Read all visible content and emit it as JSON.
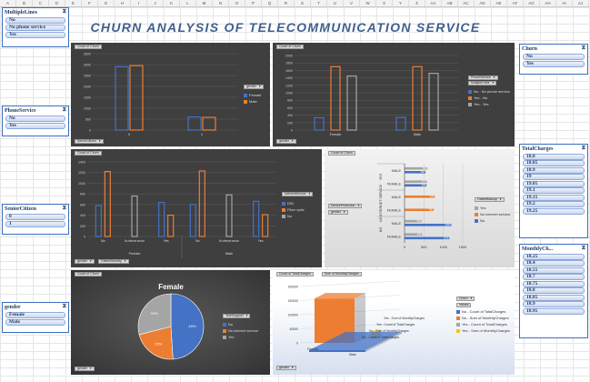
{
  "columns": [
    "A",
    "B",
    "C",
    "D",
    "E",
    "F",
    "G",
    "H",
    "I",
    "J",
    "K",
    "L",
    "M",
    "N",
    "O",
    "P",
    "Q",
    "R",
    "S",
    "T",
    "U",
    "V",
    "W",
    "X",
    "Y",
    "Z",
    "AA",
    "AB",
    "AC",
    "AD",
    "AE",
    "AF",
    "AG",
    "AH",
    "AI",
    "AJ"
  ],
  "title": "CHURN ANALYSIS OF TELECOMMUNICATION SERVICE",
  "slicers": {
    "multiple_lines": {
      "header": "MultipleLines",
      "items": [
        "No",
        "No phone service",
        "Yes"
      ]
    },
    "phone_service": {
      "header": "PhoneService",
      "items": [
        "No",
        "Yes"
      ]
    },
    "senior_citizen": {
      "header": "SeniorCitizen",
      "items": [
        "0",
        "1"
      ]
    },
    "gender": {
      "header": "gender",
      "items": [
        "Female",
        "Male"
      ]
    },
    "churn": {
      "header": "Churn",
      "items": [
        "No",
        "Yes"
      ]
    },
    "total_charges": {
      "header": "TotalCharges",
      "items": [
        "18.8",
        "18.85",
        "18.9",
        "19",
        "19.05",
        "19.1",
        "19.15",
        "19.2",
        "19.25"
      ]
    },
    "monthly_charges": {
      "header": "MonthlyCh...",
      "items": [
        "18.25",
        "18.4",
        "18.55",
        "18.7",
        "18.75",
        "18.8",
        "18.85",
        "18.9",
        "18.95"
      ]
    }
  },
  "panel1": {
    "chip_title": "Count of Churn",
    "chip_bottom": "SeniorCitizen",
    "legend_filter": "gender",
    "legend": [
      {
        "label": "Female",
        "color": "#4472c4"
      },
      {
        "label": "Male",
        "color": "#ed7d31"
      }
    ],
    "chart_data": {
      "type": "bar",
      "categories": [
        "0",
        "1"
      ],
      "series": [
        {
          "name": "Female",
          "values": [
            2900,
            600
          ]
        },
        {
          "name": "Male",
          "values": [
            2950,
            580
          ]
        }
      ],
      "ylim": [
        0,
        3500
      ],
      "yticks": [
        "3500",
        "3000",
        "2500",
        "2000",
        "1500",
        "1000",
        "500",
        "0"
      ]
    }
  },
  "panel2": {
    "chip_title": "Count of Churn",
    "chip_bottom": "gender",
    "legend_filter1": "PhoneService",
    "legend_filter2": "MultipleLines",
    "legend": [
      {
        "label": "No - No phone service",
        "color": "#4472c4"
      },
      {
        "label": "Yes - No",
        "color": "#ed7d31"
      },
      {
        "label": "Yes - Yes",
        "color": "#a5a5a5"
      }
    ],
    "chart_data": {
      "type": "bar",
      "categories": [
        "Female",
        "Male"
      ],
      "series": [
        {
          "name": "No - No phone service",
          "values": [
            330,
            340
          ]
        },
        {
          "name": "Yes - No",
          "values": [
            1700,
            1700
          ]
        },
        {
          "name": "Yes - Yes",
          "values": [
            1450,
            1520
          ]
        }
      ],
      "ylim": [
        0,
        2000
      ],
      "yticks": [
        "2000",
        "1800",
        "1600",
        "1400",
        "1200",
        "1000",
        "800",
        "600",
        "400",
        "200",
        "0"
      ]
    }
  },
  "panel3": {
    "chip_title": "Count of Churn",
    "legend_filter": "InternetService",
    "legend": [
      {
        "label": "DSL",
        "color": "#4472c4"
      },
      {
        "label": "Fiber optic",
        "color": "#ed7d31"
      },
      {
        "label": "No",
        "color": "#a5a5a5"
      }
    ],
    "chip_b1": "gender",
    "chip_b2": "OnlineSecurity",
    "chart_data": {
      "type": "bar",
      "categories": [
        "No",
        "No internet service",
        "Yes",
        "No",
        "No internet service",
        "Yes"
      ],
      "groups": [
        "Female",
        "Male"
      ],
      "series": [
        {
          "name": "DSL",
          "values": [
            580,
            0,
            640,
            600,
            0,
            660
          ]
        },
        {
          "name": "Fiber optic",
          "values": [
            1220,
            0,
            400,
            1230,
            0,
            410
          ]
        },
        {
          "name": "No",
          "values": [
            0,
            760,
            0,
            0,
            780,
            0
          ]
        }
      ],
      "ylim": [
        0,
        1400
      ],
      "yticks": [
        "1400",
        "1200",
        "1000",
        "800",
        "600",
        "400",
        "200",
        "0"
      ]
    }
  },
  "panel4": {
    "chip_title": "Count of Churn",
    "chip_filter1": "DeviceProtection",
    "chip_filter2": "gender",
    "legend_filter": "OnlineBackup",
    "legend": [
      {
        "label": "Yes",
        "color": "#a5a5a5"
      },
      {
        "label": "No internet service",
        "color": "#ed7d31"
      },
      {
        "label": "No",
        "color": "#4472c4"
      }
    ],
    "xticks": [
      "0",
      "500",
      "1000",
      "1500"
    ],
    "chart_data": {
      "type": "bar",
      "orientation": "horizontal",
      "groups": [
        "YES",
        "NO INTERNET SERVICE",
        "NO"
      ],
      "rows": [
        {
          "group": "YES",
          "label": "MALE",
          "values": [
            590,
            0,
            540
          ],
          "texts": [
            "590",
            "",
            "540"
          ]
        },
        {
          "group": "YES",
          "label": "FEMALE",
          "values": [
            577,
            0,
            566
          ],
          "texts": [
            "577",
            "",
            "566"
          ]
        },
        {
          "group": "NO INTERNET SERVICE",
          "label": "MALE",
          "values": [
            0,
            776,
            0
          ],
          "texts": [
            "",
            "776",
            ""
          ]
        },
        {
          "group": "NO INTERNET SERVICE",
          "label": "FEMALE",
          "values": [
            0,
            750,
            0
          ],
          "texts": [
            "",
            "750",
            ""
          ]
        },
        {
          "group": "NO",
          "label": "MALE",
          "values": [
            434,
            0,
            1206
          ],
          "texts": [
            "434",
            "",
            "1206"
          ]
        },
        {
          "group": "NO",
          "label": "FEMALE",
          "values": [
            450,
            0,
            1155
          ],
          "texts": [
            "450",
            "",
            "1155"
          ]
        }
      ],
      "xlim": [
        0,
        1500
      ]
    }
  },
  "panel5": {
    "chip_title": "Count of Churn",
    "pie_title": "Female",
    "legend_filter": "TechSupport",
    "legend": [
      {
        "label": "No",
        "color": "#4472c4"
      },
      {
        "label": "No internet service",
        "color": "#ed7d31"
      },
      {
        "label": "Yes",
        "color": "#a5a5a5"
      }
    ],
    "chip_bottom": "gender",
    "chart_data": {
      "type": "pie",
      "labels": [
        "No",
        "No internet service",
        "Yes"
      ],
      "values": [
        49,
        22,
        29
      ],
      "texts": [
        "49%",
        "22%",
        "29%"
      ]
    }
  },
  "panel6": {
    "chip_title": "Count of TotalCharges",
    "chip_title2": "Sum of MonthlyCharges",
    "legend_filter": "Churn",
    "legend_values": "Values",
    "legend": [
      {
        "label": "No - Count of TotalCharges",
        "color": "#4472c4"
      },
      {
        "label": "No - Sum of MonthlyCharges",
        "color": "#ed7d31"
      },
      {
        "label": "Yes - Count of TotalCharges",
        "color": "#a5a5a5"
      },
      {
        "label": "Yes - Sum of MonthlyCharges",
        "color": "#ffc000"
      }
    ],
    "chip_bottom": "gender",
    "yticks": [
      "200000",
      "150000",
      "100000",
      "50000",
      "0"
    ],
    "xlabels": [
      "Female",
      "Male"
    ],
    "series_labels": [
      "Yes - Sum of MonthlyCharges",
      "Yes - Count of TotalCharges",
      "No - Sum of MonthlyCharges",
      "No - Count of TotalCharges"
    ],
    "chart_data": {
      "type": "bar",
      "categories": [
        "Female",
        "Male"
      ],
      "series": [
        {
          "name": "No - Count of TotalCharges",
          "values": [
            2549,
            2625
          ]
        },
        {
          "name": "No - Sum of MonthlyCharges",
          "values": [
            155000,
            160000
          ]
        },
        {
          "name": "Yes - Count of TotalCharges",
          "values": [
            939,
            930
          ]
        },
        {
          "name": "Yes - Sum of MonthlyCharges",
          "values": [
            70000,
            70000
          ]
        }
      ],
      "ylim": [
        0,
        200000
      ]
    }
  }
}
